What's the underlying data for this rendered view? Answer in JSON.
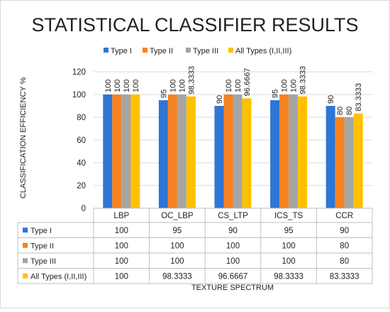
{
  "chart_data": {
    "type": "bar",
    "title": "STATISTICAL CLASSIFIER RESULTS",
    "ylabel": "CLASSIFICATION EFFICIENCY %",
    "xlabel": "TEXTURE SPECTRUM",
    "categories": [
      "LBP",
      "OC_LBP",
      "CS_LTP",
      "ICS_TS",
      "CCR"
    ],
    "ylim": [
      0,
      120
    ],
    "yticks": [
      0,
      20,
      40,
      60,
      80,
      100,
      120
    ],
    "grid": true,
    "legend_position": "top",
    "data_table": true,
    "series": [
      {
        "name": "Type I",
        "color": "#2E75D6",
        "values": [
          100,
          95,
          90,
          95,
          90
        ],
        "labels": [
          "100",
          "95",
          "90",
          "95",
          "90"
        ]
      },
      {
        "name": "Type II",
        "color": "#F5821F",
        "values": [
          100,
          100,
          100,
          100,
          80
        ],
        "labels": [
          "100",
          "100",
          "100",
          "100",
          "80"
        ]
      },
      {
        "name": "Type III",
        "color": "#A5A5A5",
        "values": [
          100,
          100,
          100,
          100,
          80
        ],
        "labels": [
          "100",
          "100",
          "100",
          "100",
          "80"
        ]
      },
      {
        "name": "All Types (I,II,III)",
        "color": "#FFC000",
        "values": [
          100,
          98.3333,
          96.6667,
          98.3333,
          83.3333
        ],
        "labels": [
          "100",
          "98.3333",
          "96.6667",
          "98.3333",
          "83.3333"
        ]
      }
    ]
  }
}
